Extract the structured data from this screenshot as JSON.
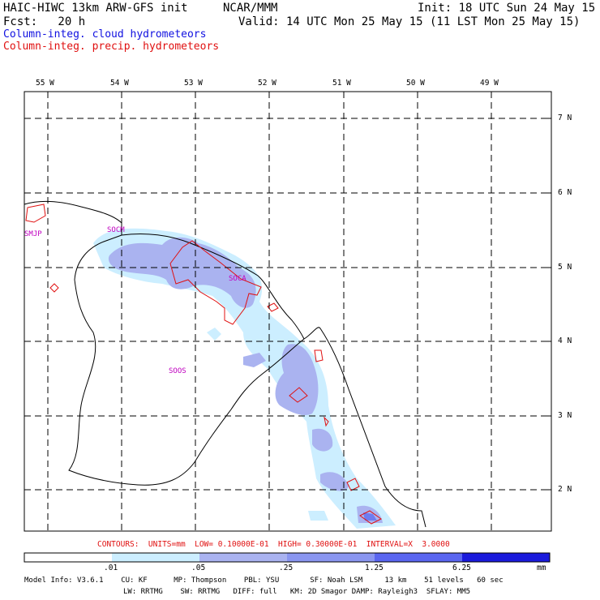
{
  "header": {
    "title_left": "HAIC-HIWC 13km ARW-GFS init",
    "org": "NCAR/MMM",
    "init": "Init: 18 UTC Sun 24 May 15",
    "fcst": "Fcst:   20 h",
    "valid": "Valid: 14 UTC Mon 25 May 15 (11 LST Mon 25 May 15)",
    "field_cloud": "Column-integ. cloud hydrometeors",
    "field_precip": "Column-integ. precip. hydrometeors"
  },
  "map": {
    "lon_labels": [
      "55 W",
      "54 W",
      "53 W",
      "52 W",
      "51 W",
      "50 W",
      "49 W"
    ],
    "lat_labels": [
      "7 N",
      "6 N",
      "5 N",
      "4 N",
      "3 N",
      "2 N"
    ],
    "stations": [
      "SMJP",
      "SOCM",
      "SOCA",
      "SOOS"
    ],
    "colors": {
      "light": "#cceeff",
      "mid": "#aab3f0",
      "dark": "#6e7cf0",
      "max": "#1a1adc",
      "contour": "#e01010",
      "grid": "#000000"
    }
  },
  "contours_line": "CONTOURS:  UNITS=mm  LOW= 0.10000E-01  HIGH= 0.30000E-01  INTERVAL=X  3.0000",
  "colorbar": {
    "ticks": [
      ".01",
      ".05",
      ".25",
      "1.25",
      "6.25"
    ],
    "units": "mm",
    "colors": [
      "#ffffff",
      "#cceeff",
      "#aab3f0",
      "#8a96f0",
      "#5a66f0",
      "#1a1adc"
    ]
  },
  "model_info": {
    "line1": "Model Info: V3.6.1    CU: KF      MP: Thompson    PBL: YSU       SF: Noah LSM     13 km    51 levels   60 sec",
    "line2": "LW: RRTMG    SW: RRTMG   DIFF: full   KM: 2D Smagor DAMP: Rayleigh3  SFLAY: MM5"
  }
}
